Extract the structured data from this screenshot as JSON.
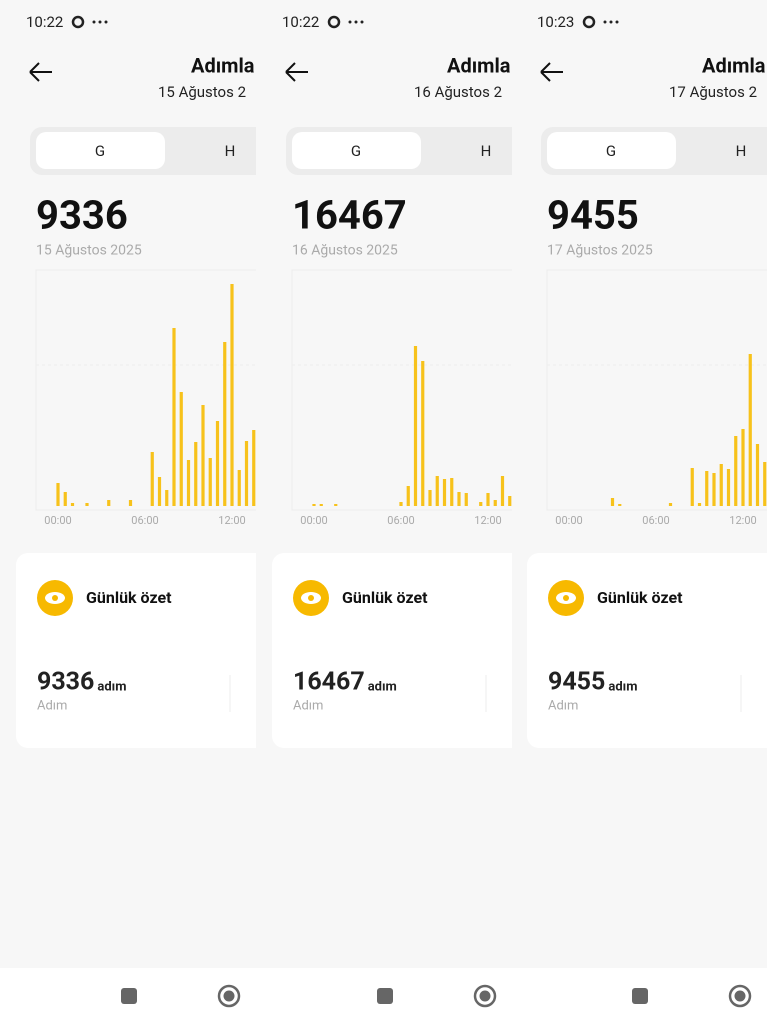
{
  "panels": [
    {
      "status_time": "10:22",
      "title": "Adımla",
      "subtitle": "15 Ağustos 2",
      "tabs": [
        "G",
        "H"
      ],
      "total": 9336,
      "date": "15 Ağustos 2025",
      "chart": {
        "type": "bar",
        "color": "#f7c21b",
        "x_labels": [
          "00:00",
          "06:00",
          "12:00"
        ],
        "values": [
          23,
          14,
          3,
          0,
          3,
          0,
          0,
          6,
          0,
          0,
          6,
          0,
          0,
          54,
          29,
          16,
          178,
          114,
          46,
          64,
          101,
          48,
          85,
          164,
          222,
          36,
          65,
          76
        ]
      },
      "summary": {
        "title": "Günlük özet",
        "steps": 9336,
        "unit": "adım",
        "label": "Adım"
      }
    },
    {
      "status_time": "10:22",
      "title": "Adımla",
      "subtitle": "16 Ağustos 2",
      "tabs": [
        "G",
        "H"
      ],
      "total": 16467,
      "date": "16 Ağustos 2025",
      "chart": {
        "type": "bar",
        "color": "#f7c21b",
        "x_labels": [
          "00:00",
          "06:00",
          "12:00"
        ],
        "values": [
          2,
          2,
          0,
          2,
          0,
          0,
          0,
          0,
          0,
          0,
          0,
          0,
          4,
          20,
          160,
          145,
          16,
          30,
          27,
          28,
          14,
          13,
          0,
          4,
          13,
          6,
          30,
          10
        ]
      },
      "summary": {
        "title": "Günlük özet",
        "steps": 16467,
        "unit": "adım",
        "label": "Adım"
      }
    },
    {
      "status_time": "10:23",
      "title": "Adımla",
      "subtitle": "17 Ağustos 2",
      "tabs": [
        "G",
        "H"
      ],
      "total": 9455,
      "date": "17 Ağustos 2025",
      "chart": {
        "type": "bar",
        "color": "#f7c21b",
        "x_labels": [
          "00:00",
          "06:00",
          "12:00"
        ],
        "values": [
          0,
          0,
          0,
          0,
          0,
          0,
          8,
          2,
          0,
          0,
          0,
          0,
          0,
          0,
          3,
          0,
          0,
          38,
          3,
          35,
          33,
          42,
          37,
          70,
          77,
          152,
          62,
          44
        ]
      },
      "summary": {
        "title": "Günlük özet",
        "steps": 9455,
        "unit": "adım",
        "label": "Adım"
      }
    }
  ]
}
